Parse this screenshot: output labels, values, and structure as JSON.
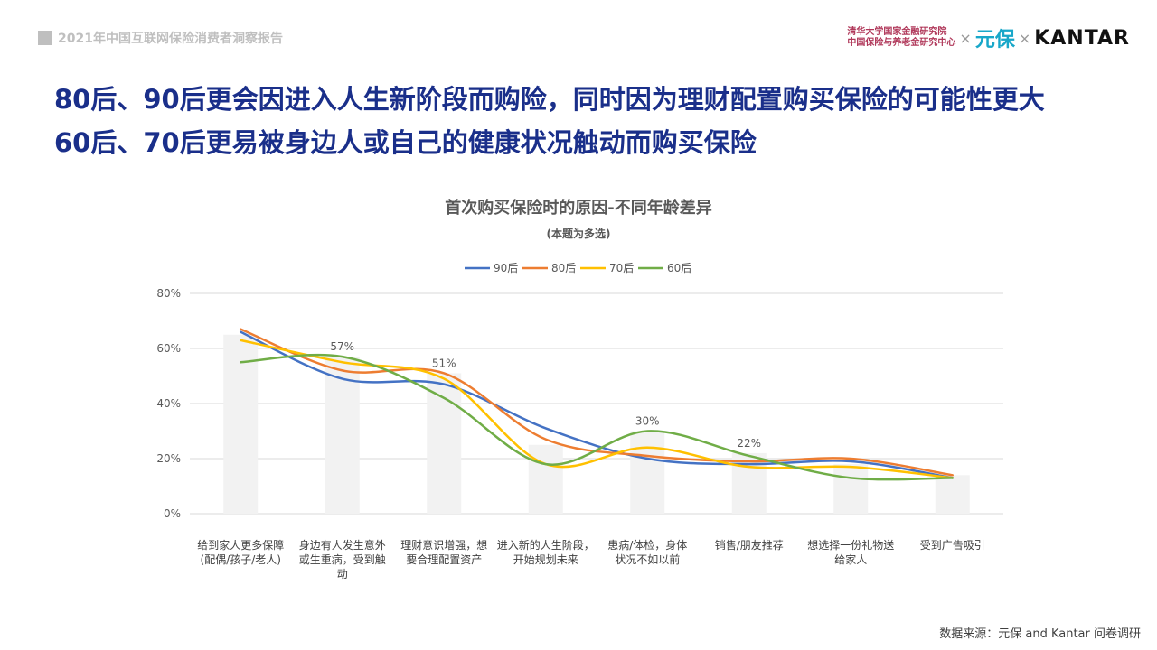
{
  "header": {
    "report_title": "2021年中国互联网保险消费者洞察报告",
    "logo_line1": "清华大学国家金融研究院",
    "logo_line2": "中国保险与养老金研究中心",
    "logo_sep1": "×",
    "logo_yuanbao": "元保",
    "logo_sep2": "×",
    "logo_kantar": "KANTAR"
  },
  "headline": {
    "line1": "80后、90后更会因进入人生新阶段而购险，同时因为理财配置购买保险的可能性更大",
    "line2": "60后、70后更易被身边人或自己的健康状况触动而购买保险"
  },
  "footer": {
    "source": "数据来源：元保 and Kantar 问卷调研"
  },
  "colors": {
    "headline": "#1a2f8a",
    "90后": "#4472c4",
    "80后": "#ed7d31",
    "70后": "#ffc000",
    "60后": "#70ad47",
    "bar": "#f2f2f2"
  },
  "chart_data": {
    "type": "line",
    "title": "首次购买保险时的原因-不同年龄差异",
    "subtitle": "(本题为多选)",
    "ylim": [
      0,
      80
    ],
    "yticks": [
      "0%",
      "20%",
      "40%",
      "60%",
      "80%"
    ],
    "categories": [
      "给到家人更多保障\n(配偶/孩子/老人)",
      "身边有人发生意外\n或生重病，受到触\n动",
      "理财意识增强，想\n要合理配置资产",
      "进入新的人生阶段，\n开始规划未来",
      "患病/体检，身体\n状况不如以前",
      "销售/朋友推荐",
      "想选择一份礼物送\n给家人",
      "受到广告吸引"
    ],
    "bars": {
      "values": [
        65,
        57,
        51,
        25,
        30,
        22,
        18,
        14
      ],
      "labels": [
        "",
        "57%",
        "51%",
        "",
        "30%",
        "22%",
        "",
        ""
      ]
    },
    "series": [
      {
        "name": "90后",
        "values": [
          66,
          49,
          47,
          31,
          20,
          18,
          19,
          13
        ]
      },
      {
        "name": "80后",
        "values": [
          67,
          52,
          51,
          27,
          21,
          19,
          20,
          14
        ]
      },
      {
        "name": "70后",
        "values": [
          63,
          55,
          49,
          18,
          24,
          17,
          17,
          13
        ]
      },
      {
        "name": "60后",
        "values": [
          55,
          57,
          42,
          18,
          30,
          21,
          13,
          13
        ]
      }
    ]
  }
}
